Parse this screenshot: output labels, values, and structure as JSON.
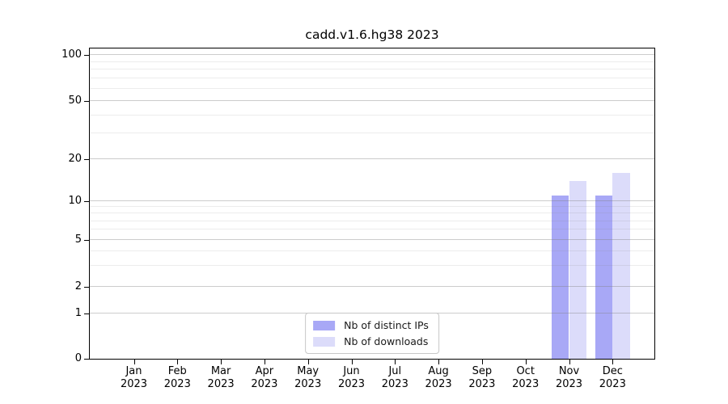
{
  "chart_data": {
    "type": "bar",
    "title": "cadd.v1.6.hg38 2023",
    "categories": [
      "Jan",
      "Feb",
      "Mar",
      "Apr",
      "May",
      "Jun",
      "Jul",
      "Aug",
      "Sep",
      "Oct",
      "Nov",
      "Dec"
    ],
    "year_label": "2023",
    "series": [
      {
        "name": "Nb of distinct IPs",
        "color": "#a8a8f6",
        "values": [
          0,
          0,
          0,
          0,
          0,
          0,
          0,
          0,
          0,
          0,
          11,
          11
        ]
      },
      {
        "name": "Nb of downloads",
        "color": "#dcdcfa",
        "values": [
          0,
          0,
          0,
          0,
          0,
          0,
          0,
          0,
          0,
          0,
          14,
          16
        ]
      }
    ],
    "xlabel": "",
    "ylabel": "",
    "y_scale": "symlog",
    "ylim": [
      0,
      114
    ],
    "y_major_ticks": [
      0,
      1,
      2,
      5,
      10,
      20,
      50,
      100
    ],
    "y_minor_gridlines": [
      3,
      4,
      6,
      7,
      8,
      9,
      30,
      40,
      60,
      70,
      80,
      90
    ],
    "grid": true,
    "legend": {
      "position": "lower center",
      "entries": [
        "Nb of distinct IPs",
        "Nb of downloads"
      ]
    },
    "colors": {
      "background": "#ffffff",
      "axis": "#000000",
      "text": "#000000",
      "grid_major": "rgba(128,128,128,0.40)",
      "grid_minor": "rgba(128,128,128,0.15)",
      "legend_border": "#c8c8c8"
    }
  }
}
